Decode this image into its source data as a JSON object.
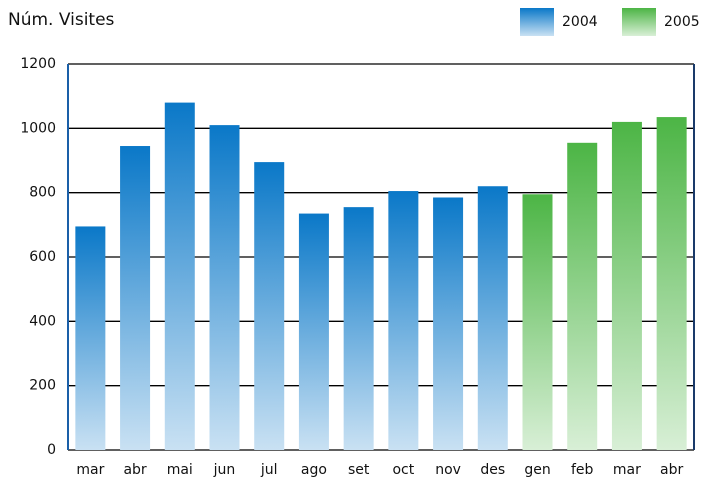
{
  "chart_data": {
    "type": "bar",
    "title": "Núm. Visites",
    "categories": [
      "mar",
      "abr",
      "mai",
      "jun",
      "jul",
      "ago",
      "set",
      "oct",
      "nov",
      "des",
      "gen",
      "feb",
      "mar",
      "abr"
    ],
    "series": [
      {
        "name": "2004",
        "color": "#0a78c8",
        "values": [
          695,
          945,
          1080,
          1010,
          895,
          735,
          755,
          805,
          785,
          820,
          null,
          null,
          null,
          null
        ]
      },
      {
        "name": "2005",
        "color": "#4cb545",
        "values": [
          null,
          null,
          null,
          null,
          null,
          null,
          null,
          null,
          null,
          null,
          795,
          955,
          1020,
          1035
        ]
      }
    ],
    "ylim": [
      0,
      1200
    ],
    "yticks": [
      0,
      200,
      400,
      600,
      800,
      1000,
      1200
    ],
    "grid": true,
    "legend": "top-right"
  }
}
